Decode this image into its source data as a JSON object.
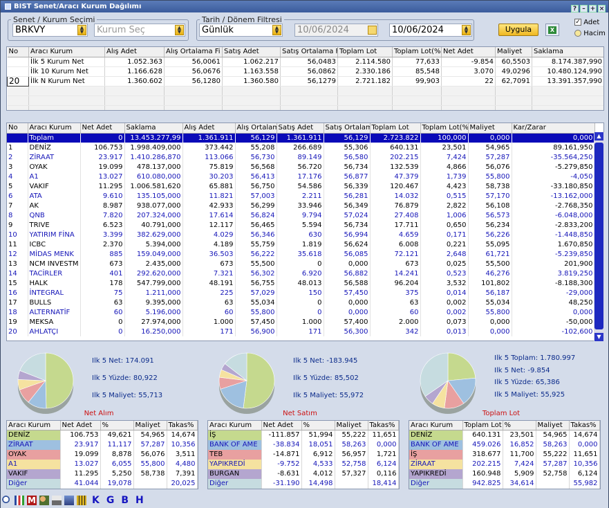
{
  "window": {
    "title": "BIST Senet/Aracı Kurum Dağılımı"
  },
  "filters": {
    "group1_label": "Senet / Kurum Seçimi",
    "symbol": "BRKVY",
    "broker_placeholder": "Kurum Seç",
    "group2_label": "Tarih / Dönem Filtresi",
    "period": "Günlük",
    "date_from": "10/06/2024",
    "date_to": "10/06/2024",
    "apply_label": "Uygula",
    "opt_adet": "Adet",
    "opt_hacim": "Hacim",
    "excel_icon": "excel-icon"
  },
  "summary": {
    "headers": [
      "No",
      "Aracı Kurum",
      "Alış Adet",
      "Alış Ortalama Fi",
      "Satış Adet",
      "Satış Ortalama Fi",
      "Toplam Lot",
      "Toplam Lot(%",
      "Net Adet",
      "Maliyet",
      "Saklama"
    ],
    "rows": [
      [
        "",
        "İlk 5 Kurum Net",
        "1.052.363",
        "56,0061",
        "1.062.217",
        "56,0483",
        "2.114.580",
        "77,633",
        "-9.854",
        "60,5503",
        "8.174.387,990"
      ],
      [
        "",
        "İlk 10 Kurum Net",
        "1.166.628",
        "56,0676",
        "1.163.558",
        "56,0862",
        "2.330.186",
        "85,548",
        "3.070",
        "49,0296",
        "10.480.124,990"
      ],
      [
        "20",
        "İlk N Kurum Net",
        "1.360.602",
        "56,1280",
        "1.360.580",
        "56,1279",
        "2.721.182",
        "99,903",
        "22",
        "62,7091",
        "13.391.357,990"
      ]
    ]
  },
  "detail": {
    "headers": [
      "No",
      "Aracı Kurum",
      "Net Adet",
      "Saklama",
      "Alış Adet",
      "Alış Ortalam",
      "Satış Adet",
      "Satış Ortalam",
      "Toplam Lot",
      "Toplam Lot(%",
      "Maliyet",
      "Kar/Zarar"
    ],
    "total": [
      "",
      "Toplam",
      "0",
      "13.453.277,99",
      "1.361.911",
      "56,129",
      "1.361.911",
      "56,129",
      "2.723.822",
      "100,000",
      "0,000",
      "0,000"
    ],
    "rows": [
      [
        "1",
        "DENİZ",
        "106.753",
        "1.998.409,000",
        "373.442",
        "55,208",
        "266.689",
        "55,306",
        "640.131",
        "23,501",
        "54,965",
        "89.161,950"
      ],
      [
        "2",
        "ZİRAAT",
        "23.917",
        "1.410.286,870",
        "113.066",
        "56,730",
        "89.149",
        "56,580",
        "202.215",
        "7,424",
        "57,287",
        "-35.564,250"
      ],
      [
        "3",
        "OYAK",
        "19.099",
        "478.137,000",
        "75.819",
        "56,568",
        "56.720",
        "56,734",
        "132.539",
        "4,866",
        "56,076",
        "-5.279,850"
      ],
      [
        "4",
        "A1",
        "13.027",
        "610.080,000",
        "30.203",
        "56,413",
        "17.176",
        "56,877",
        "47.379",
        "1,739",
        "55,800",
        "-4,050"
      ],
      [
        "5",
        "VAKIF",
        "11.295",
        "1.006.581,620",
        "65.881",
        "56,750",
        "54.586",
        "56,339",
        "120.467",
        "4,423",
        "58,738",
        "-33.180,850"
      ],
      [
        "6",
        "ATA",
        "9.610",
        "135.105,000",
        "11.821",
        "57,003",
        "2.211",
        "56,281",
        "14.032",
        "0,515",
        "57,170",
        "-13.162,000"
      ],
      [
        "7",
        "AK",
        "8.987",
        "938.077,000",
        "42.933",
        "56,299",
        "33.946",
        "56,349",
        "76.879",
        "2,822",
        "56,108",
        "-2.768,350"
      ],
      [
        "8",
        "QNB",
        "7.820",
        "207.324,000",
        "17.614",
        "56,824",
        "9.794",
        "57,024",
        "27.408",
        "1,006",
        "56,573",
        "-6.048,000"
      ],
      [
        "9",
        "TRIVE",
        "6.523",
        "40.791,000",
        "12.117",
        "56,465",
        "5.594",
        "56,734",
        "17.711",
        "0,650",
        "56,234",
        "-2.833,200"
      ],
      [
        "10",
        "YATIRIM FİNA",
        "3.399",
        "382.629,000",
        "4.029",
        "56,346",
        "630",
        "56,994",
        "4.659",
        "0,171",
        "56,226",
        "-1.448,850"
      ],
      [
        "11",
        "ICBC",
        "2.370",
        "5.394,000",
        "4.189",
        "55,759",
        "1.819",
        "56,624",
        "6.008",
        "0,221",
        "55,095",
        "1.670,850"
      ],
      [
        "12",
        "MİDAS MENK",
        "885",
        "159.049,000",
        "36.503",
        "56,222",
        "35.618",
        "56,085",
        "72.121",
        "2,648",
        "61,721",
        "-5.239,850"
      ],
      [
        "13",
        "NCM INVESTM",
        "673",
        "2.435,000",
        "673",
        "55,500",
        "0",
        "0,000",
        "673",
        "0,025",
        "55,500",
        "201,900"
      ],
      [
        "14",
        "TACİRLER",
        "401",
        "292.620,000",
        "7.321",
        "56,302",
        "6.920",
        "56,882",
        "14.241",
        "0,523",
        "46,276",
        "3.819,250"
      ],
      [
        "15",
        "HALK",
        "178",
        "547.799,000",
        "48.191",
        "56,755",
        "48.013",
        "56,588",
        "96.204",
        "3,532",
        "101,802",
        "-8.188,300"
      ],
      [
        "16",
        "İNTEGRAL",
        "75",
        "1.211,000",
        "225",
        "57,029",
        "150",
        "57,450",
        "375",
        "0,014",
        "56,187",
        "-29,000"
      ],
      [
        "17",
        "BULLS",
        "63",
        "9.395,000",
        "63",
        "55,034",
        "0",
        "0,000",
        "63",
        "0,002",
        "55,034",
        "48,250"
      ],
      [
        "18",
        "ALTERNATİF",
        "60",
        "5.196,000",
        "60",
        "55,800",
        "0",
        "0,000",
        "60",
        "0,002",
        "55,800",
        "0,000"
      ],
      [
        "19",
        "MEKSA",
        "0",
        "27.974,000",
        "1.000",
        "57,450",
        "1.000",
        "57,400",
        "2.000",
        "0,073",
        "0,000",
        "-50,000"
      ],
      [
        "20",
        "AHLATÇI",
        "0",
        "16.250,000",
        "171",
        "56,900",
        "171",
        "56,300",
        "342",
        "0,013",
        "0,000",
        "-102,600"
      ]
    ]
  },
  "panels": [
    {
      "caption": "Net Alım",
      "info": [
        "Ilk 5 Net: 174.091",
        "Ilk 5 Yüzde: 80,922",
        "Ilk 5 Maliyet: 55,713"
      ],
      "headers": [
        "Aracı Kurum",
        "Net Adet",
        "%",
        "Maliyet",
        "Takas%"
      ],
      "rows": [
        [
          "DENİZ",
          "106.753",
          "49,621",
          "54,965",
          "14,674"
        ],
        [
          "ZİRAAT",
          "23.917",
          "11,117",
          "57,287",
          "10,356"
        ],
        [
          "OYAK",
          "19.099",
          "8,878",
          "56,076",
          "3,511"
        ],
        [
          "A1",
          "13.027",
          "6,055",
          "55,800",
          "4,480"
        ],
        [
          "VAKIF",
          "11.295",
          "5,250",
          "58,738",
          "7,391"
        ],
        [
          "Diğer",
          "41.044",
          "19,078",
          "",
          "20,025"
        ]
      ],
      "slices": [
        49.621,
        11.117,
        8.878,
        6.055,
        5.25,
        19.078
      ]
    },
    {
      "caption": "Net Satım",
      "info": [
        "Ilk 5 Net: -183.945",
        "Ilk 5 Yüzde: 85,502",
        "Ilk 5 Maliyet: 55,972"
      ],
      "headers": [
        "Aracı Kurum",
        "Net Adet",
        "%",
        "Maliyet",
        "Takas%"
      ],
      "rows": [
        [
          "İŞ",
          "-111.857",
          "51,994",
          "55,222",
          "11,651"
        ],
        [
          "BANK OF AME",
          "-38.834",
          "18,051",
          "58,263",
          "0,000"
        ],
        [
          "TEB",
          "-14.871",
          "6,912",
          "56,957",
          "1,721"
        ],
        [
          "YAPIKREDİ",
          "-9.752",
          "4,533",
          "52,758",
          "6,124"
        ],
        [
          "BURGAN",
          "-8.631",
          "4,012",
          "57,327",
          "0,116"
        ],
        [
          "Diğer",
          "-31.190",
          "14,498",
          "",
          "18,414"
        ]
      ],
      "slices": [
        51.994,
        18.051,
        6.912,
        4.533,
        4.012,
        14.498
      ]
    },
    {
      "caption": "Toplam Lot",
      "info": [
        "Ilk 5 Toplam: 1.780.997",
        "Ilk 5 Net: -9.854",
        "Ilk 5 Yüzde: 65,386",
        "Ilk 5 Maliyet: 55,925"
      ],
      "headers": [
        "Aracı Kurum",
        "Toplam Lot",
        "%",
        "Maliyet",
        "Takas%"
      ],
      "rows": [
        [
          "DENİZ",
          "640.131",
          "23,501",
          "54,965",
          "14,674"
        ],
        [
          "BANK OF AME",
          "459.026",
          "16,852",
          "58,263",
          "0,000"
        ],
        [
          "İŞ",
          "318.677",
          "11,700",
          "55,222",
          "11,651"
        ],
        [
          "ZİRAAT",
          "202.215",
          "7,424",
          "57,287",
          "10,356"
        ],
        [
          "YAPIKREDİ",
          "160.948",
          "5,909",
          "52,758",
          "6,124"
        ],
        [
          "Diğer",
          "942.825",
          "34,614",
          "",
          "55,982"
        ]
      ],
      "slices": [
        23.501,
        16.852,
        11.7,
        7.424,
        5.909,
        34.614
      ]
    }
  ],
  "slice_colors": [
    "#c5d98e",
    "#9ec0e0",
    "#e8a0a0",
    "#f5e2a0",
    "#b4a6cf",
    "#c6dce0"
  ],
  "bottom_icons": [
    "search-icon",
    "chart-icon",
    "mail-icon",
    "users-icon",
    "print-icon",
    "disk-icon",
    "calculator-icon"
  ],
  "bottom_letters": [
    "K",
    "G",
    "B",
    "H"
  ]
}
